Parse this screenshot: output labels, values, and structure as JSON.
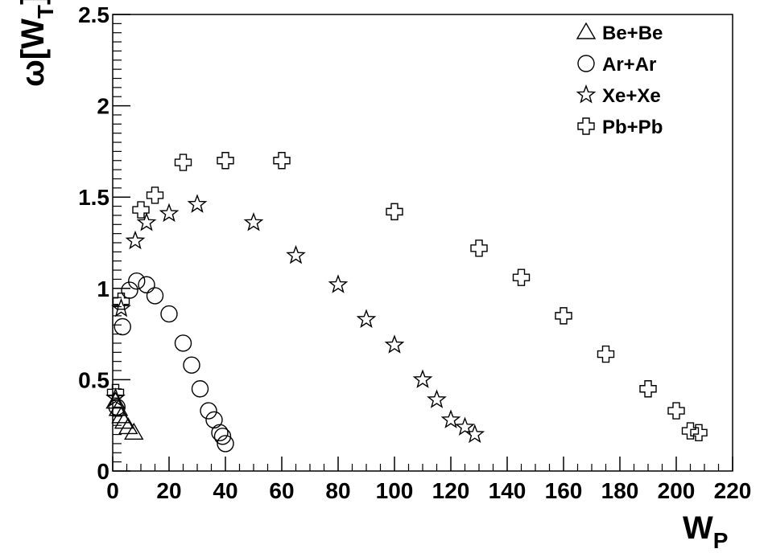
{
  "chart_data": {
    "type": "scatter",
    "title": "",
    "xlabel": {
      "main": "W",
      "sub": "P"
    },
    "ylabel": {
      "prefix": "ω[W",
      "sub": "T",
      "suffix": "]"
    },
    "xlim": [
      0,
      220
    ],
    "ylim": [
      0,
      2.5
    ],
    "x_ticks": [
      0,
      20,
      40,
      60,
      80,
      100,
      120,
      140,
      160,
      180,
      200,
      220
    ],
    "y_ticks": [
      0,
      0.5,
      1,
      1.5,
      2,
      2.5
    ],
    "x_tick_labels": [
      "0",
      "20",
      "40",
      "60",
      "80",
      "100",
      "120",
      "140",
      "160",
      "180",
      "200",
      "220"
    ],
    "y_tick_labels": [
      "0",
      "0.5",
      "1",
      "1.5",
      "2",
      "2.5"
    ],
    "grid": false,
    "legend_position": "top-right",
    "series": [
      {
        "name": "Be+Be",
        "marker": "triangle",
        "points": [
          [
            1.0,
            0.38
          ],
          [
            2.0,
            0.34
          ],
          [
            3.0,
            0.3
          ],
          [
            4.0,
            0.27
          ],
          [
            5.5,
            0.24
          ],
          [
            7.5,
            0.21
          ]
        ]
      },
      {
        "name": "Ar+Ar",
        "marker": "circle",
        "points": [
          [
            1.5,
            0.35
          ],
          [
            3.5,
            0.79
          ],
          [
            6.0,
            0.99
          ],
          [
            8.5,
            1.04
          ],
          [
            12.0,
            1.02
          ],
          [
            15.0,
            0.96
          ],
          [
            20.0,
            0.86
          ],
          [
            25.0,
            0.7
          ],
          [
            28.0,
            0.58
          ],
          [
            31.0,
            0.45
          ],
          [
            34.0,
            0.33
          ],
          [
            36.0,
            0.28
          ],
          [
            38.0,
            0.21
          ],
          [
            39.0,
            0.19
          ],
          [
            40.0,
            0.15
          ]
        ]
      },
      {
        "name": "Xe+Xe",
        "marker": "star",
        "points": [
          [
            1.0,
            0.4
          ],
          [
            3.0,
            0.89
          ],
          [
            8.0,
            1.26
          ],
          [
            12.0,
            1.36
          ],
          [
            20.0,
            1.41
          ],
          [
            30.0,
            1.46
          ],
          [
            50.0,
            1.36
          ],
          [
            65.0,
            1.18
          ],
          [
            80.0,
            1.02
          ],
          [
            90.0,
            0.83
          ],
          [
            100.0,
            0.69
          ],
          [
            110.0,
            0.5
          ],
          [
            115.0,
            0.39
          ],
          [
            120.0,
            0.28
          ],
          [
            125.0,
            0.24
          ],
          [
            128.5,
            0.2
          ]
        ]
      },
      {
        "name": "Pb+Pb",
        "marker": "cross",
        "points": [
          [
            1.0,
            0.43
          ],
          [
            3.0,
            0.93
          ],
          [
            10.0,
            1.43
          ],
          [
            15.0,
            1.51
          ],
          [
            25.0,
            1.69
          ],
          [
            40.0,
            1.7
          ],
          [
            60.0,
            1.7
          ],
          [
            100.0,
            1.42
          ],
          [
            130.0,
            1.22
          ],
          [
            145.0,
            1.06
          ],
          [
            160.0,
            0.85
          ],
          [
            175.0,
            0.64
          ],
          [
            190.0,
            0.45
          ],
          [
            200.0,
            0.33
          ],
          [
            205.0,
            0.22
          ],
          [
            208.0,
            0.21
          ]
        ]
      }
    ]
  }
}
